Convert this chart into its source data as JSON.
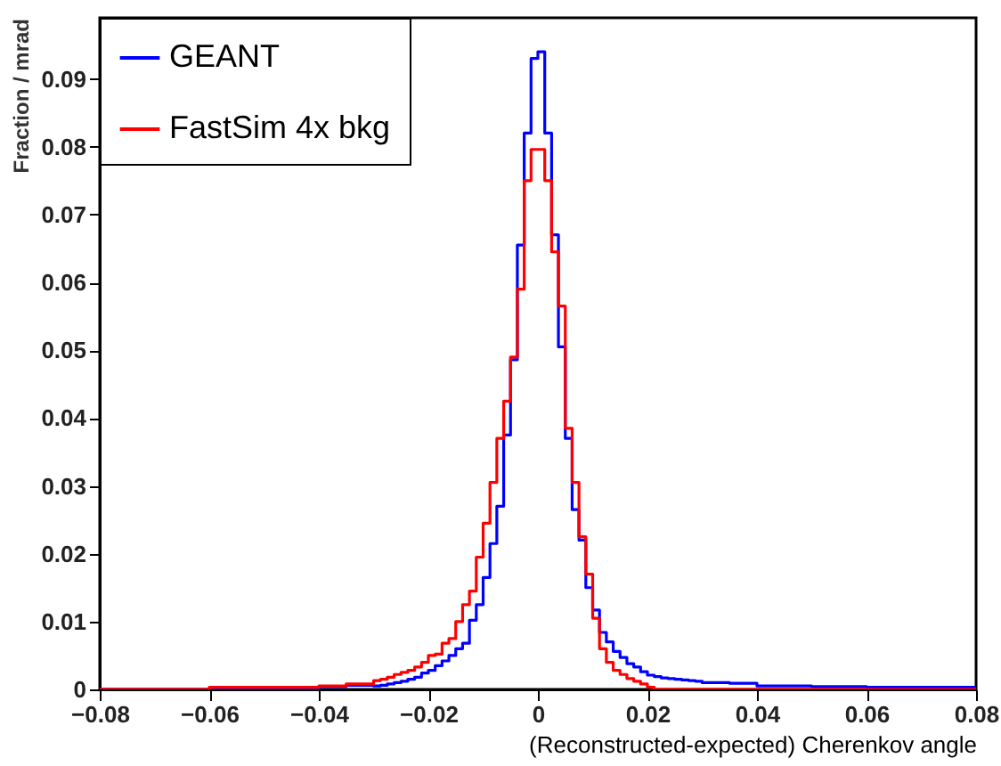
{
  "chart_data": {
    "type": "histogram",
    "xlabel": "(Reconstructed-expected) Cherenkov angle",
    "ylabel": "Fraction / mrad",
    "bins": [
      -0.08,
      -0.06,
      -0.05,
      -0.04,
      -0.035,
      -0.03,
      -0.02875,
      -0.0275,
      -0.02625,
      -0.025,
      -0.02375,
      -0.0225,
      -0.02125,
      -0.02,
      -0.01875,
      -0.0175,
      -0.01625,
      -0.015,
      -0.01375,
      -0.0125,
      -0.01125,
      -0.01,
      -0.00875,
      -0.0075,
      -0.00625,
      -0.005,
      -0.00375,
      -0.0025,
      -0.00125,
      0,
      0.00125,
      0.0025,
      0.00375,
      0.005,
      0.00625,
      0.0075,
      0.00875,
      0.01,
      0.01125,
      0.0125,
      0.01375,
      0.015,
      0.01625,
      0.0175,
      0.01875,
      0.02,
      0.02125,
      0.0225,
      0.02375,
      0.025,
      0.02625,
      0.0275,
      0.02875,
      0.03,
      0.035,
      0.04,
      0.05,
      0.06,
      0.07,
      0.08
    ],
    "series": [
      {
        "name": "GEANT",
        "color": "#0000ff",
        "values": [
          0,
          0.0001,
          0.0002,
          0.0004,
          0.0006,
          0.0005,
          0.0006,
          0.0008,
          0.001,
          0.0012,
          0.0015,
          0.0018,
          0.0024,
          0.0028,
          0.0035,
          0.0042,
          0.005,
          0.006,
          0.0068,
          0.0102,
          0.0125,
          0.0165,
          0.0215,
          0.027,
          0.0375,
          0.0486,
          0.0655,
          0.082,
          0.093,
          0.094,
          0.082,
          0.067,
          0.0505,
          0.037,
          0.0265,
          0.022,
          0.015,
          0.0117,
          0.0084,
          0.007,
          0.0056,
          0.0047,
          0.0038,
          0.0033,
          0.0026,
          0.0021,
          0.0019,
          0.0017,
          0.0016,
          0.0015,
          0.0014,
          0.0013,
          0.0012,
          0.001,
          0.0009,
          0.0005,
          0.0004,
          0.0003,
          0.0003
        ]
      },
      {
        "name": "FastSim 4x bkg",
        "color": "#ff0000",
        "values": [
          0,
          0.0003,
          0.0003,
          0.0005,
          0.0008,
          0.0013,
          0.0015,
          0.0018,
          0.0022,
          0.0025,
          0.0028,
          0.0033,
          0.004,
          0.005,
          0.0052,
          0.0068,
          0.0075,
          0.01,
          0.0125,
          0.0145,
          0.0195,
          0.0245,
          0.0305,
          0.037,
          0.0425,
          0.049,
          0.059,
          0.075,
          0.0796,
          0.0796,
          0.075,
          0.0645,
          0.0565,
          0.0385,
          0.0305,
          0.0225,
          0.017,
          0.0105,
          0.006,
          0.004,
          0.0028,
          0.0022,
          0.0016,
          0.0012,
          0.0008,
          0.0003,
          0,
          0,
          0,
          0,
          0,
          0,
          0,
          0,
          0,
          0,
          0,
          0,
          0
        ]
      }
    ],
    "xlim": [
      -0.08,
      0.08
    ],
    "xticks": [
      -0.08,
      -0.06,
      -0.04,
      -0.02,
      0,
      0.02,
      0.04,
      0.06,
      0.08
    ],
    "ylim": [
      0,
      0.099
    ],
    "yticks": [
      0,
      0.01,
      0.02,
      0.03,
      0.04,
      0.05,
      0.06,
      0.07,
      0.08,
      0.09
    ],
    "legend": "top left"
  }
}
